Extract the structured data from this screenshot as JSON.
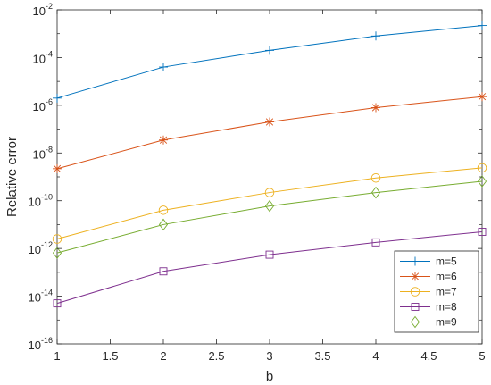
{
  "chart_data": {
    "type": "line",
    "xlabel": "b",
    "ylabel": "Relative error",
    "x": [
      1,
      2,
      3,
      4,
      5
    ],
    "xlim": [
      1,
      5
    ],
    "xticks": [
      "1",
      "1.5",
      "2",
      "2.5",
      "3",
      "3.5",
      "4",
      "4.5",
      "5"
    ],
    "yscale": "log",
    "ylim": [
      1e-16,
      0.01
    ],
    "yticks": [
      {
        "base": "10",
        "exp": "-16"
      },
      {
        "base": "10",
        "exp": "-14"
      },
      {
        "base": "10",
        "exp": "-12"
      },
      {
        "base": "10",
        "exp": "-10"
      },
      {
        "base": "10",
        "exp": "-8"
      },
      {
        "base": "10",
        "exp": "-6"
      },
      {
        "base": "10",
        "exp": "-4"
      },
      {
        "base": "10",
        "exp": "-2"
      }
    ],
    "grid": false,
    "legend_position": "bottom-right",
    "series": [
      {
        "name": "m=5",
        "marker": "plus",
        "color": "#0072BD",
        "values": [
          2e-06,
          4e-05,
          0.0002,
          0.0008,
          0.0022
        ]
      },
      {
        "name": "m=6",
        "marker": "asterisk",
        "color": "#D95319",
        "values": [
          2.2e-09,
          3.5e-08,
          2e-07,
          8e-07,
          2.3e-06
        ]
      },
      {
        "name": "m=7",
        "marker": "circle",
        "color": "#EDB120",
        "values": [
          2.5e-12,
          4e-11,
          2.2e-10,
          9e-10,
          2.4e-09
        ]
      },
      {
        "name": "m=8",
        "marker": "square",
        "color": "#7E2F8E",
        "values": [
          5e-15,
          1.1e-13,
          5.5e-13,
          1.8e-12,
          5e-12
        ]
      },
      {
        "name": "m=9",
        "marker": "diamond",
        "color": "#77AC30",
        "values": [
          6.5e-13,
          1e-11,
          6e-11,
          2.2e-10,
          6.5e-10
        ]
      }
    ]
  }
}
